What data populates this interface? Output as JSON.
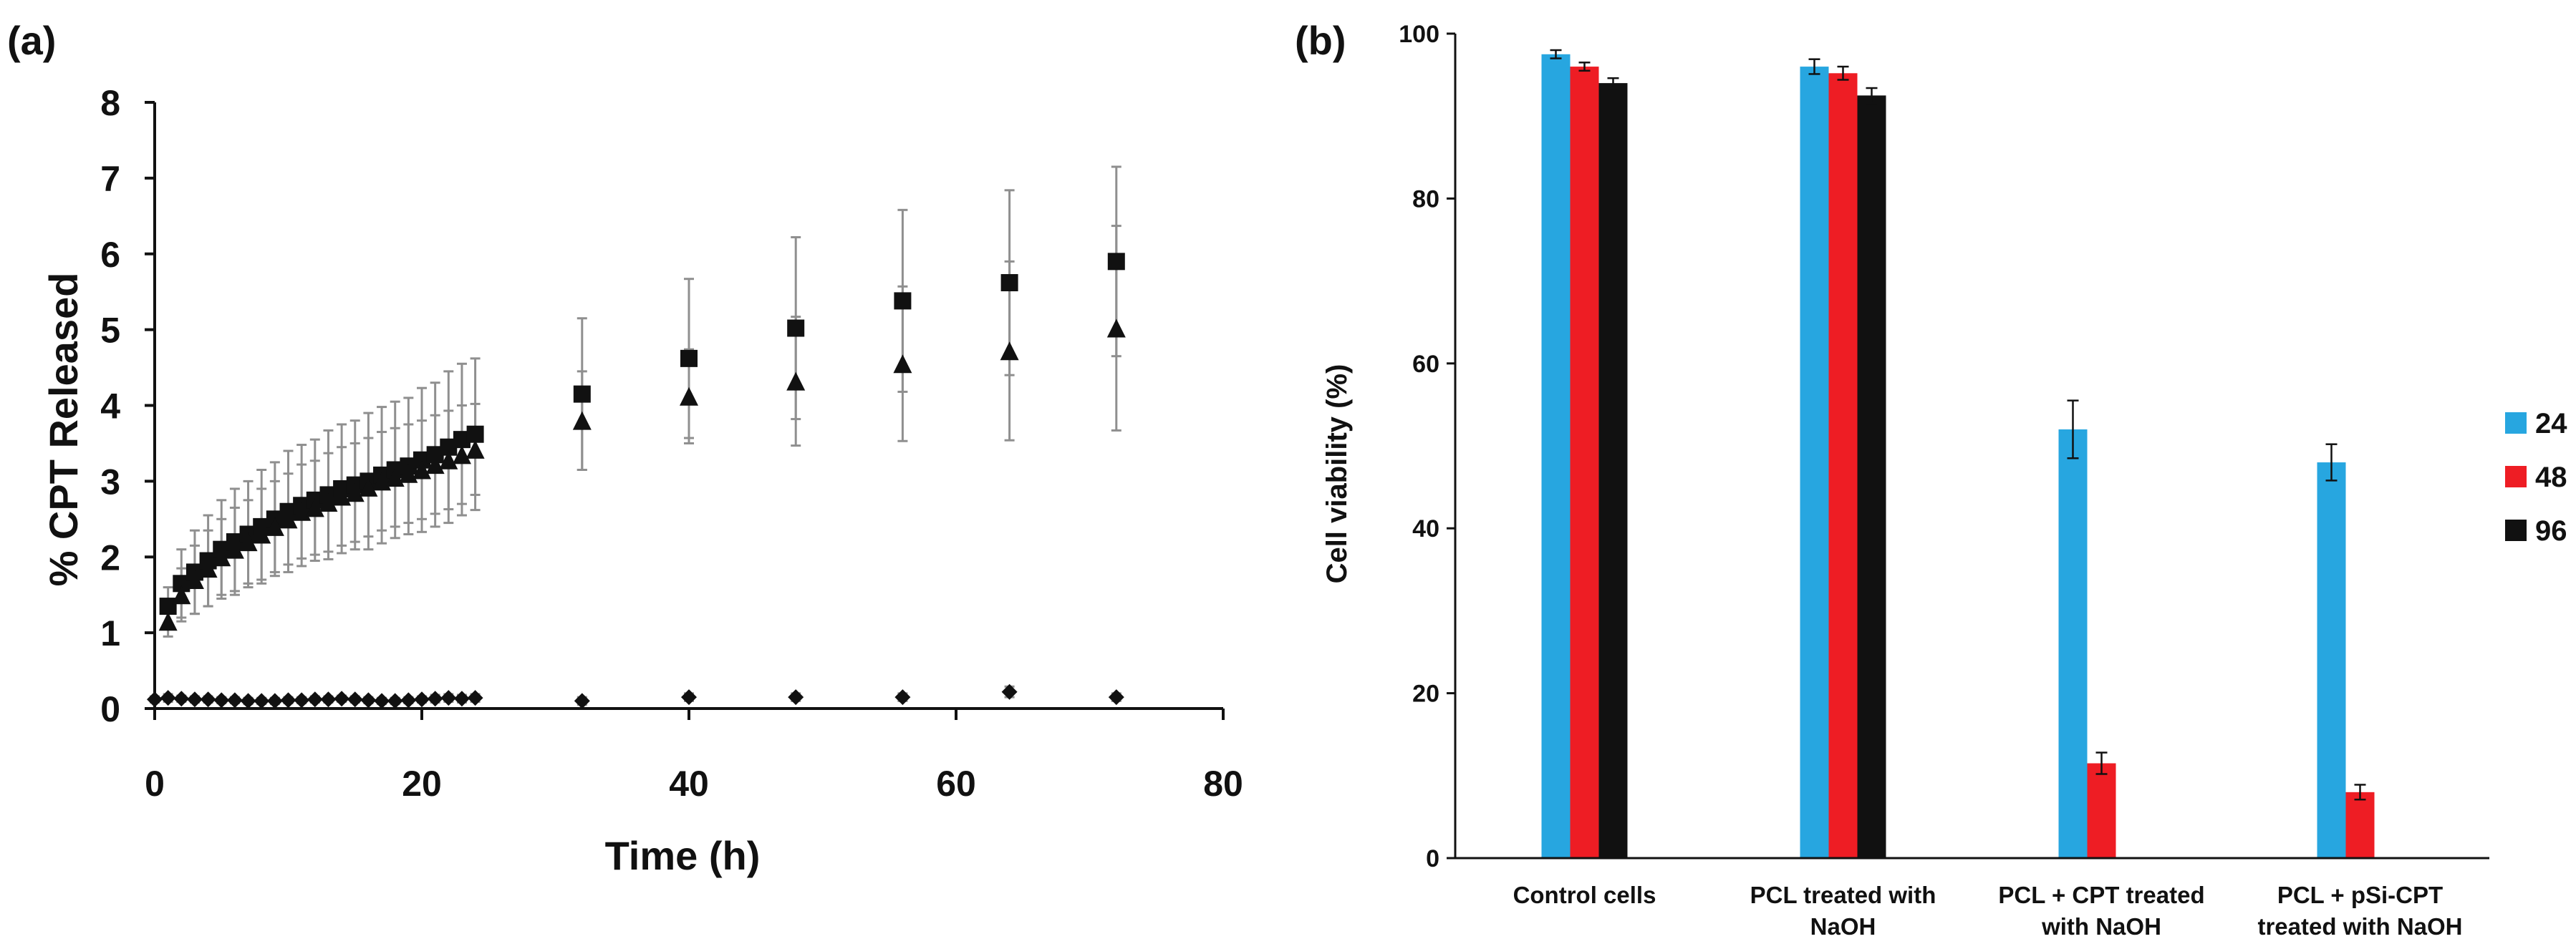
{
  "panels": {
    "a": {
      "label": "(a)"
    },
    "b": {
      "label": "(b)"
    }
  },
  "chart_data": [
    {
      "type": "scatter",
      "panel": "a",
      "title": "",
      "xlabel": "Time (h)",
      "ylabel": "% CPT Released",
      "xlim": [
        0,
        80
      ],
      "ylim": [
        0,
        8
      ],
      "xticks": [
        0,
        20,
        40,
        60,
        80
      ],
      "yticks": [
        0,
        1,
        2,
        3,
        4,
        5,
        6,
        7,
        8
      ],
      "series": [
        {
          "name": "squares",
          "marker": "square",
          "x": [
            1,
            2,
            3,
            4,
            5,
            6,
            7,
            8,
            9,
            10,
            11,
            12,
            13,
            14,
            15,
            16,
            17,
            18,
            19,
            20,
            21,
            22,
            23,
            24,
            32,
            40,
            48,
            56,
            64,
            72
          ],
          "y": [
            1.35,
            1.65,
            1.8,
            1.95,
            2.1,
            2.2,
            2.3,
            2.4,
            2.5,
            2.6,
            2.68,
            2.75,
            2.82,
            2.9,
            2.95,
            3.0,
            3.08,
            3.15,
            3.2,
            3.28,
            3.35,
            3.45,
            3.55,
            3.62,
            4.15,
            4.62,
            5.02,
            5.38,
            5.62,
            5.9
          ],
          "err": [
            0.25,
            0.45,
            0.55,
            0.6,
            0.65,
            0.7,
            0.7,
            0.75,
            0.75,
            0.8,
            0.8,
            0.8,
            0.85,
            0.85,
            0.85,
            0.9,
            0.9,
            0.9,
            0.9,
            0.95,
            0.95,
            1.0,
            1.0,
            1.0,
            1.0,
            1.05,
            1.2,
            1.2,
            1.22,
            1.25
          ]
        },
        {
          "name": "triangles",
          "marker": "triangle",
          "x": [
            1,
            2,
            3,
            4,
            5,
            6,
            7,
            8,
            9,
            10,
            11,
            12,
            13,
            14,
            15,
            16,
            17,
            18,
            19,
            20,
            21,
            22,
            23,
            24,
            32,
            40,
            48,
            56,
            64,
            72
          ],
          "y": [
            1.15,
            1.5,
            1.7,
            1.85,
            2.0,
            2.1,
            2.2,
            2.3,
            2.4,
            2.5,
            2.6,
            2.65,
            2.72,
            2.8,
            2.85,
            2.92,
            3.0,
            3.05,
            3.1,
            3.15,
            3.22,
            3.28,
            3.35,
            3.42,
            3.8,
            4.12,
            4.32,
            4.55,
            4.72,
            5.02
          ],
          "err": [
            0.2,
            0.35,
            0.45,
            0.5,
            0.5,
            0.55,
            0.55,
            0.6,
            0.6,
            0.6,
            0.62,
            0.62,
            0.65,
            0.65,
            0.65,
            0.65,
            0.65,
            0.65,
            0.65,
            0.65,
            0.65,
            0.65,
            0.65,
            0.6,
            0.65,
            0.62,
            0.85,
            1.02,
            1.18,
            1.35
          ]
        },
        {
          "name": "diamonds",
          "marker": "diamond",
          "x": [
            0,
            1,
            2,
            3,
            4,
            5,
            6,
            7,
            8,
            9,
            10,
            11,
            12,
            13,
            14,
            15,
            16,
            17,
            18,
            19,
            20,
            21,
            22,
            23,
            24,
            32,
            40,
            48,
            56,
            64,
            72
          ],
          "y": [
            0.12,
            0.14,
            0.13,
            0.12,
            0.12,
            0.11,
            0.11,
            0.1,
            0.1,
            0.1,
            0.11,
            0.11,
            0.12,
            0.12,
            0.13,
            0.12,
            0.11,
            0.1,
            0.1,
            0.11,
            0.12,
            0.13,
            0.14,
            0.13,
            0.14,
            0.1,
            0.15,
            0.15,
            0.15,
            0.22,
            0.15
          ],
          "err": [
            0.04,
            0.05,
            0.04,
            0.04,
            0.04,
            0.04,
            0.04,
            0.04,
            0.04,
            0.04,
            0.04,
            0.04,
            0.04,
            0.04,
            0.04,
            0.04,
            0.04,
            0.04,
            0.04,
            0.04,
            0.04,
            0.05,
            0.05,
            0.05,
            0.05,
            0.05,
            0.05,
            0.05,
            0.05,
            0.07,
            0.05
          ]
        }
      ]
    },
    {
      "type": "bar",
      "panel": "b",
      "title": "",
      "xlabel": "",
      "ylabel": "Cell viability (%)",
      "ylim": [
        0,
        100
      ],
      "yticks": [
        0,
        20,
        40,
        60,
        80,
        100
      ],
      "categories": [
        [
          "Control cells"
        ],
        [
          "PCL treated with",
          "NaOH"
        ],
        [
          "PCL + CPT treated",
          "with NaOH"
        ],
        [
          "PCL + pSi-CPT",
          "treated with NaOH"
        ]
      ],
      "legend_position": "right",
      "series": [
        {
          "name": "24 h",
          "color": "#27a6e0",
          "values": [
            97.5,
            96.0,
            52.0,
            48.0
          ],
          "err": [
            0.5,
            0.9,
            3.5,
            2.2
          ]
        },
        {
          "name": "48 h",
          "color": "#ee1d24",
          "values": [
            96.0,
            95.2,
            11.5,
            8.0
          ],
          "err": [
            0.5,
            0.8,
            1.3,
            0.9
          ]
        },
        {
          "name": "96 h",
          "color": "#111111",
          "values": [
            94.0,
            92.5,
            null,
            null
          ],
          "err": [
            0.6,
            0.9,
            null,
            null
          ]
        }
      ]
    }
  ]
}
